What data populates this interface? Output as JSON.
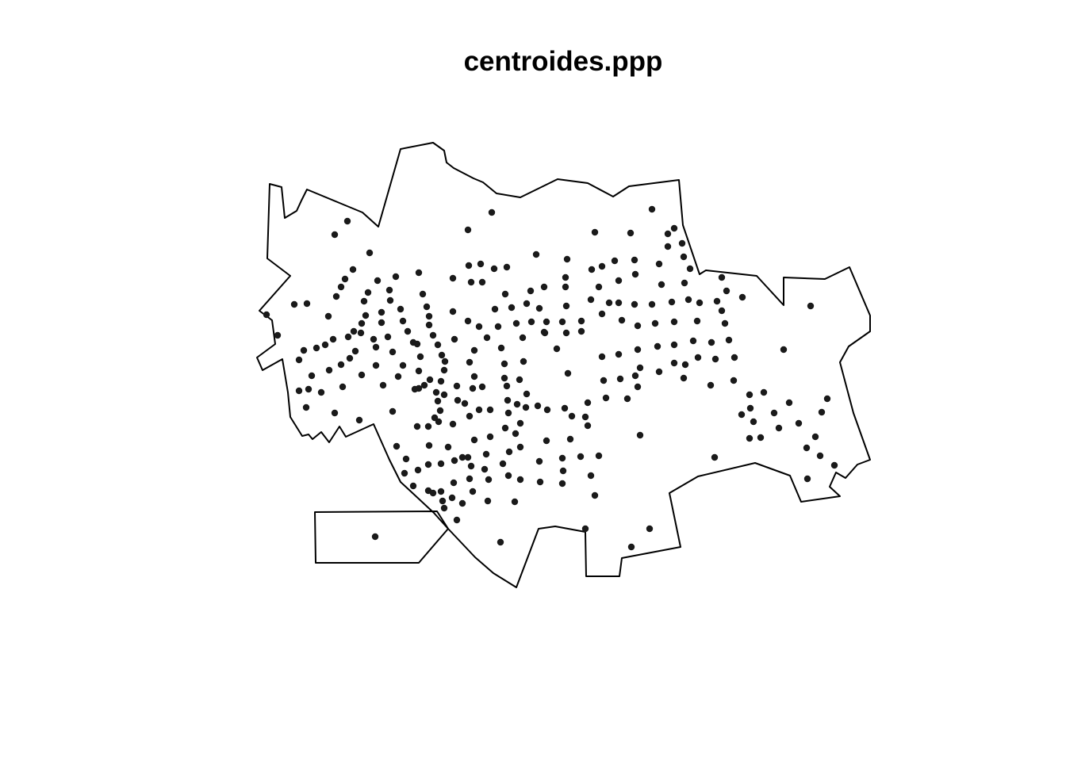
{
  "chart_data": {
    "type": "scatter",
    "title": "centroides.ppp",
    "xlabel": "",
    "ylabel": "",
    "axes": "none",
    "grid": false,
    "legend": "none",
    "point_color": "#1a1a1a",
    "window_outline_color": "#000000",
    "main_window": [
      [
        505,
        188
      ],
      [
        546,
        180
      ],
      [
        560,
        190
      ],
      [
        563,
        205
      ],
      [
        572,
        212
      ],
      [
        597,
        225
      ],
      [
        609,
        230
      ],
      [
        626,
        244
      ],
      [
        656,
        249
      ],
      [
        703,
        226
      ],
      [
        741,
        231
      ],
      [
        773,
        248
      ],
      [
        793,
        235
      ],
      [
        856,
        227
      ],
      [
        861,
        284
      ],
      [
        882,
        346
      ],
      [
        890,
        341
      ],
      [
        954,
        348
      ],
      [
        988,
        385
      ],
      [
        988,
        350
      ],
      [
        1040,
        352
      ],
      [
        1071,
        337
      ],
      [
        1097,
        398
      ],
      [
        1097,
        418
      ],
      [
        1070,
        437
      ],
      [
        1059,
        457
      ],
      [
        1076,
        521
      ],
      [
        1097,
        580
      ],
      [
        1081,
        586
      ],
      [
        1066,
        603
      ],
      [
        1054,
        596
      ],
      [
        1046,
        614
      ],
      [
        1059,
        626
      ],
      [
        1010,
        633
      ],
      [
        996,
        600
      ],
      [
        952,
        584
      ],
      [
        880,
        601
      ],
      [
        844,
        622
      ],
      [
        858,
        690
      ],
      [
        784,
        704
      ],
      [
        781,
        727
      ],
      [
        739,
        727
      ],
      [
        738,
        671
      ],
      [
        700,
        664
      ],
      [
        679,
        667
      ],
      [
        651,
        741
      ],
      [
        622,
        723
      ],
      [
        599,
        703
      ],
      [
        565,
        667
      ],
      [
        547,
        647
      ],
      [
        518,
        620
      ],
      [
        505,
        608
      ],
      [
        491,
        580
      ],
      [
        471,
        535
      ],
      [
        436,
        551
      ],
      [
        428,
        538
      ],
      [
        415,
        558
      ],
      [
        405,
        545
      ],
      [
        394,
        554
      ],
      [
        389,
        548
      ],
      [
        381,
        550
      ],
      [
        366,
        526
      ],
      [
        363,
        495
      ],
      [
        356,
        453
      ],
      [
        331,
        467
      ],
      [
        324,
        451
      ],
      [
        347,
        434
      ],
      [
        343,
        404
      ],
      [
        327,
        392
      ],
      [
        366,
        348
      ],
      [
        337,
        326
      ],
      [
        340,
        232
      ],
      [
        355,
        236
      ],
      [
        359,
        275
      ],
      [
        374,
        266
      ],
      [
        380,
        253
      ],
      [
        387,
        239
      ],
      [
        428,
        256
      ],
      [
        457,
        268
      ],
      [
        477,
        286
      ]
    ],
    "secondary_window": [
      [
        397,
        646
      ],
      [
        551,
        645
      ],
      [
        565,
        667
      ],
      [
        528,
        710
      ],
      [
        398,
        710
      ]
    ],
    "points": [
      [
        438,
        279
      ],
      [
        422,
        296
      ],
      [
        466,
        319
      ],
      [
        620,
        268
      ],
      [
        590,
        290
      ],
      [
        822,
        264
      ],
      [
        750,
        293
      ],
      [
        795,
        294
      ],
      [
        850,
        288
      ],
      [
        842,
        295
      ],
      [
        860,
        307
      ],
      [
        842,
        311
      ],
      [
        862,
        324
      ],
      [
        870,
        339
      ],
      [
        371,
        384
      ],
      [
        387,
        383
      ],
      [
        336,
        397
      ],
      [
        350,
        423
      ],
      [
        414,
        399
      ],
      [
        445,
        340
      ],
      [
        435,
        352
      ],
      [
        430,
        362
      ],
      [
        424,
        374
      ],
      [
        459,
        380
      ],
      [
        464,
        369
      ],
      [
        476,
        354
      ],
      [
        499,
        349
      ],
      [
        528,
        344
      ],
      [
        571,
        351
      ],
      [
        591,
        335
      ],
      [
        606,
        333
      ],
      [
        623,
        339
      ],
      [
        639,
        337
      ],
      [
        676,
        321
      ],
      [
        715,
        327
      ],
      [
        594,
        356
      ],
      [
        608,
        356
      ],
      [
        637,
        371
      ],
      [
        669,
        367
      ],
      [
        686,
        362
      ],
      [
        713,
        350
      ],
      [
        713,
        362
      ],
      [
        746,
        340
      ],
      [
        759,
        336
      ],
      [
        775,
        329
      ],
      [
        800,
        328
      ],
      [
        831,
        333
      ],
      [
        755,
        362
      ],
      [
        780,
        354
      ],
      [
        801,
        346
      ],
      [
        834,
        359
      ],
      [
        863,
        357
      ],
      [
        910,
        350
      ],
      [
        916,
        367
      ],
      [
        936,
        375
      ],
      [
        1022,
        386
      ],
      [
        988,
        441
      ],
      [
        491,
        366
      ],
      [
        492,
        379
      ],
      [
        481,
        394
      ],
      [
        481,
        407
      ],
      [
        461,
        398
      ],
      [
        456,
        408
      ],
      [
        455,
        420
      ],
      [
        446,
        418
      ],
      [
        439,
        425
      ],
      [
        420,
        428
      ],
      [
        410,
        435
      ],
      [
        399,
        439
      ],
      [
        383,
        442
      ],
      [
        377,
        454
      ],
      [
        430,
        460
      ],
      [
        441,
        452
      ],
      [
        448,
        443
      ],
      [
        471,
        428
      ],
      [
        474,
        438
      ],
      [
        489,
        425
      ],
      [
        495,
        444
      ],
      [
        505,
        390
      ],
      [
        508,
        405
      ],
      [
        514,
        418
      ],
      [
        521,
        432
      ],
      [
        533,
        371
      ],
      [
        538,
        387
      ],
      [
        541,
        399
      ],
      [
        541,
        410
      ],
      [
        546,
        423
      ],
      [
        552,
        435
      ],
      [
        557,
        448
      ],
      [
        561,
        456
      ],
      [
        560,
        467
      ],
      [
        556,
        481
      ],
      [
        571,
        393
      ],
      [
        590,
        405
      ],
      [
        604,
        412
      ],
      [
        624,
        390
      ],
      [
        628,
        412
      ],
      [
        645,
        388
      ],
      [
        651,
        408
      ],
      [
        664,
        383
      ],
      [
        670,
        406
      ],
      [
        680,
        389
      ],
      [
        686,
        419
      ],
      [
        689,
        406
      ],
      [
        709,
        406
      ],
      [
        714,
        386
      ],
      [
        714,
        420
      ],
      [
        733,
        405
      ],
      [
        733,
        418
      ],
      [
        745,
        378
      ],
      [
        759,
        396
      ],
      [
        768,
        382
      ],
      [
        780,
        382
      ],
      [
        784,
        404
      ],
      [
        800,
        384
      ],
      [
        804,
        411
      ],
      [
        822,
        384
      ],
      [
        826,
        408
      ],
      [
        847,
        381
      ],
      [
        850,
        406
      ],
      [
        868,
        378
      ],
      [
        879,
        405
      ],
      [
        882,
        382
      ],
      [
        904,
        380
      ],
      [
        910,
        392
      ],
      [
        914,
        408
      ],
      [
        874,
        430
      ],
      [
        897,
        432
      ],
      [
        919,
        429
      ],
      [
        926,
        451
      ],
      [
        902,
        453
      ],
      [
        880,
        451
      ],
      [
        864,
        460
      ],
      [
        850,
        458
      ],
      [
        850,
        435
      ],
      [
        829,
        437
      ],
      [
        804,
        441
      ],
      [
        780,
        447
      ],
      [
        759,
        450
      ],
      [
        761,
        480
      ],
      [
        782,
        478
      ],
      [
        801,
        474
      ],
      [
        807,
        464
      ],
      [
        831,
        469
      ],
      [
        862,
        477
      ],
      [
        896,
        486
      ],
      [
        925,
        480
      ],
      [
        804,
        488
      ],
      [
        791,
        503
      ],
      [
        764,
        502
      ],
      [
        741,
        508
      ],
      [
        573,
        428
      ],
      [
        598,
        442
      ],
      [
        592,
        457
      ],
      [
        598,
        475
      ],
      [
        608,
        488
      ],
      [
        614,
        426
      ],
      [
        632,
        439
      ],
      [
        636,
        459
      ],
      [
        636,
        477
      ],
      [
        659,
        426
      ],
      [
        660,
        456
      ],
      [
        655,
        479
      ],
      [
        687,
        420
      ],
      [
        702,
        440
      ],
      [
        716,
        471
      ],
      [
        526,
        434
      ],
      [
        530,
        450
      ],
      [
        528,
        468
      ],
      [
        523,
        491
      ],
      [
        508,
        461
      ],
      [
        502,
        475
      ],
      [
        483,
        486
      ],
      [
        456,
        473
      ],
      [
        474,
        461
      ],
      [
        415,
        467
      ],
      [
        393,
        474
      ],
      [
        377,
        493
      ],
      [
        389,
        491
      ],
      [
        405,
        495
      ],
      [
        432,
        488
      ],
      [
        386,
        514
      ],
      [
        422,
        521
      ],
      [
        453,
        530
      ],
      [
        495,
        519
      ],
      [
        528,
        490
      ],
      [
        535,
        486
      ],
      [
        542,
        479
      ],
      [
        550,
        495
      ],
      [
        552,
        506
      ],
      [
        555,
        518
      ],
      [
        548,
        527
      ],
      [
        553,
        532
      ],
      [
        576,
        487
      ],
      [
        586,
        509
      ],
      [
        596,
        490
      ],
      [
        560,
        498
      ],
      [
        577,
        505
      ],
      [
        571,
        535
      ],
      [
        592,
        525
      ],
      [
        604,
        517
      ],
      [
        618,
        517
      ],
      [
        639,
        487
      ],
      [
        640,
        505
      ],
      [
        641,
        521
      ],
      [
        652,
        510
      ],
      [
        664,
        497
      ],
      [
        663,
        514
      ],
      [
        678,
        512
      ],
      [
        690,
        517
      ],
      [
        712,
        515
      ],
      [
        721,
        525
      ],
      [
        738,
        526
      ],
      [
        741,
        537
      ],
      [
        719,
        554
      ],
      [
        689,
        556
      ],
      [
        656,
        534
      ],
      [
        650,
        547
      ],
      [
        618,
        551
      ],
      [
        598,
        555
      ],
      [
        637,
        540
      ],
      [
        613,
        573
      ],
      [
        590,
        577
      ],
      [
        565,
        564
      ],
      [
        541,
        562
      ],
      [
        540,
        538
      ],
      [
        526,
        538
      ],
      [
        500,
        563
      ],
      [
        512,
        579
      ],
      [
        527,
        593
      ],
      [
        540,
        586
      ],
      [
        556,
        585
      ],
      [
        573,
        581
      ],
      [
        583,
        577
      ],
      [
        594,
        588
      ],
      [
        611,
        592
      ],
      [
        634,
        585
      ],
      [
        642,
        570
      ],
      [
        656,
        564
      ],
      [
        680,
        582
      ],
      [
        709,
        578
      ],
      [
        732,
        576
      ],
      [
        755,
        575
      ],
      [
        710,
        594
      ],
      [
        745,
        600
      ],
      [
        750,
        625
      ],
      [
        709,
        610
      ],
      [
        681,
        608
      ],
      [
        656,
        605
      ],
      [
        641,
        600
      ],
      [
        616,
        605
      ],
      [
        592,
        604
      ],
      [
        572,
        609
      ],
      [
        556,
        620
      ],
      [
        546,
        622
      ],
      [
        558,
        632
      ],
      [
        570,
        628
      ],
      [
        583,
        635
      ],
      [
        596,
        620
      ],
      [
        615,
        632
      ],
      [
        649,
        633
      ],
      [
        510,
        597
      ],
      [
        521,
        613
      ],
      [
        540,
        619
      ],
      [
        560,
        641
      ],
      [
        576,
        656
      ],
      [
        807,
        549
      ],
      [
        901,
        577
      ],
      [
        945,
        498
      ],
      [
        963,
        495
      ],
      [
        935,
        523
      ],
      [
        946,
        515
      ],
      [
        950,
        532
      ],
      [
        976,
        521
      ],
      [
        995,
        508
      ],
      [
        982,
        540
      ],
      [
        959,
        552
      ],
      [
        945,
        553
      ],
      [
        1007,
        534
      ],
      [
        1028,
        551
      ],
      [
        1036,
        520
      ],
      [
        1043,
        503
      ],
      [
        1017,
        565
      ],
      [
        1034,
        575
      ],
      [
        1052,
        587
      ],
      [
        1018,
        604
      ],
      [
        473,
        677
      ],
      [
        631,
        684
      ],
      [
        738,
        667
      ],
      [
        819,
        667
      ],
      [
        796,
        690
      ]
    ]
  }
}
